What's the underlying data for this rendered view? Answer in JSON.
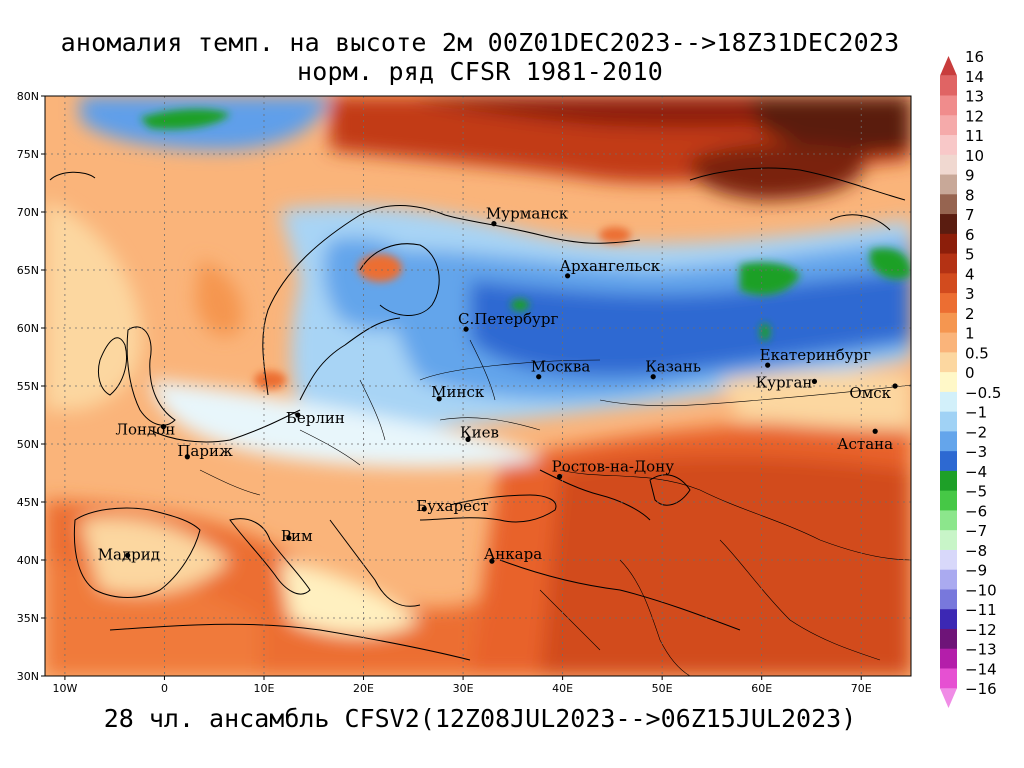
{
  "title_line1": "аномалия темп. на высоте 2м 00Z01DEC2023-->18Z31DEC2023",
  "title_line2": "норм. ряд CFSR 1981-2010",
  "footer": "28 чл. ансамбль CFSV2(12Z08JUL2023-->06Z15JUL2023)",
  "map": {
    "lon_range": [
      -12,
      75
    ],
    "lat_range": [
      30,
      80
    ],
    "lat_ticks": [
      "80N",
      "75N",
      "70N",
      "65N",
      "60N",
      "55N",
      "50N",
      "45N",
      "40N",
      "35N",
      "30N"
    ],
    "lon_ticks": [
      "10W",
      "0",
      "10E",
      "20E",
      "30E",
      "40E",
      "50E",
      "60E",
      "70E"
    ],
    "cities": [
      {
        "name": "Мурманск",
        "lon": 33.1,
        "lat": 69.0
      },
      {
        "name": "Архангельск",
        "lon": 40.5,
        "lat": 64.5
      },
      {
        "name": "С.Петербург",
        "lon": 30.3,
        "lat": 59.9
      },
      {
        "name": "Москва",
        "lon": 37.6,
        "lat": 55.8
      },
      {
        "name": "Казань",
        "lon": 49.1,
        "lat": 55.8
      },
      {
        "name": "Екатеринбург",
        "lon": 60.6,
        "lat": 56.8
      },
      {
        "name": "Курган",
        "lon": 65.3,
        "lat": 55.4
      },
      {
        "name": "Омск",
        "lon": 73.4,
        "lat": 55.0
      },
      {
        "name": "Астана",
        "lon": 71.4,
        "lat": 51.1
      },
      {
        "name": "Минск",
        "lon": 27.6,
        "lat": 53.9
      },
      {
        "name": "Берлин",
        "lon": 13.4,
        "lat": 52.5
      },
      {
        "name": "Лондон",
        "lon": -0.1,
        "lat": 51.5
      },
      {
        "name": "Париж",
        "lon": 2.3,
        "lat": 48.9
      },
      {
        "name": "Киев",
        "lon": 30.5,
        "lat": 50.4
      },
      {
        "name": "Ростов-на-Дону",
        "lon": 39.7,
        "lat": 47.2
      },
      {
        "name": "Бухарест",
        "lon": 26.1,
        "lat": 44.4
      },
      {
        "name": "Рим",
        "lon": 12.5,
        "lat": 41.9
      },
      {
        "name": "Мадрид",
        "lon": -3.7,
        "lat": 40.4
      },
      {
        "name": "Анкара",
        "lon": 32.9,
        "lat": 39.9
      }
    ]
  },
  "legend": {
    "items": [
      {
        "label": "16",
        "color": "#c83c3c"
      },
      {
        "label": "14",
        "color": "#e06464"
      },
      {
        "label": "13",
        "color": "#f08c8c"
      },
      {
        "label": "12",
        "color": "#f5aaaa"
      },
      {
        "label": "11",
        "color": "#f8c8c8"
      },
      {
        "label": "10",
        "color": "#f0d8d0"
      },
      {
        "label": "9",
        "color": "#c8a898"
      },
      {
        "label": "8",
        "color": "#966450"
      },
      {
        "label": "7",
        "color": "#5a1c10"
      },
      {
        "label": "6",
        "color": "#8c1e0a"
      },
      {
        "label": "5",
        "color": "#b43214"
      },
      {
        "label": "4",
        "color": "#d24b1e"
      },
      {
        "label": "3",
        "color": "#ec6e32"
      },
      {
        "label": "2",
        "color": "#f59650"
      },
      {
        "label": "1",
        "color": "#fab47a"
      },
      {
        "label": "0.5",
        "color": "#fcd7a0"
      },
      {
        "label": "0",
        "color": "#fff8c8"
      },
      {
        "label": "−0.5",
        "color": "#d2f0fa"
      },
      {
        "label": "−1",
        "color": "#a0d2f5"
      },
      {
        "label": "−2",
        "color": "#64a5eb"
      },
      {
        "label": "−3",
        "color": "#2d69d2"
      },
      {
        "label": "−4",
        "color": "#1ea028"
      },
      {
        "label": "−5",
        "color": "#46c846"
      },
      {
        "label": "−6",
        "color": "#8ce68c"
      },
      {
        "label": "−7",
        "color": "#c8f5c8"
      },
      {
        "label": "−8",
        "color": "#d8d8fa"
      },
      {
        "label": "−9",
        "color": "#aaaaf0"
      },
      {
        "label": "−10",
        "color": "#7878dc"
      },
      {
        "label": "−11",
        "color": "#3c28b4"
      },
      {
        "label": "−12",
        "color": "#6e1478"
      },
      {
        "label": "−13",
        "color": "#b41eaa"
      },
      {
        "label": "−14",
        "color": "#e650d2"
      },
      {
        "label": "−16",
        "color": "#f08ce6"
      }
    ]
  }
}
